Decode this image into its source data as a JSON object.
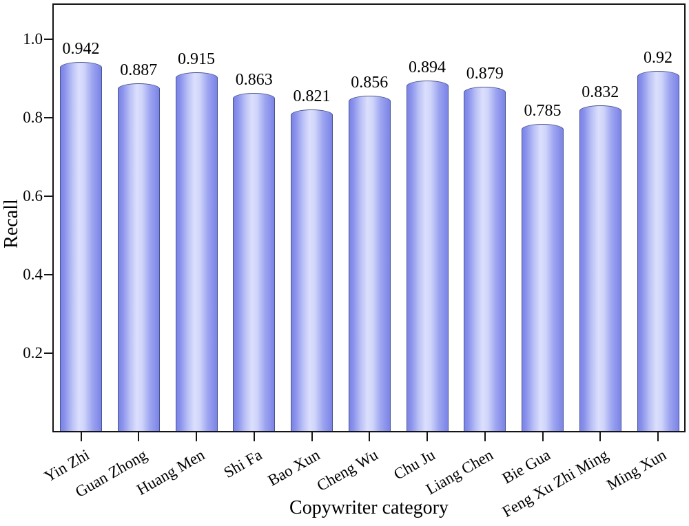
{
  "chart_data": {
    "type": "bar",
    "title": "",
    "xlabel": "Copywriter category",
    "ylabel": "Recall",
    "categories": [
      "Yin Zhi",
      "Guan Zhong",
      "Huang Men",
      "Shi Fa",
      "Bao Xun",
      "Cheng Wu",
      "Chu Ju",
      "Liang Chen",
      "Bie Gua",
      "Feng Xu Zhi Ming",
      "Ming Xun"
    ],
    "values": [
      0.942,
      0.887,
      0.915,
      0.863,
      0.821,
      0.856,
      0.894,
      0.879,
      0.785,
      0.832,
      0.92
    ],
    "bar_labels": [
      "0.942",
      "0.887",
      "0.915",
      "0.863",
      "0.821",
      "0.856",
      "0.894",
      "0.879",
      "0.785",
      "0.832",
      "0.92"
    ],
    "yticks": [
      0.2,
      0.4,
      0.6,
      0.8,
      1.0
    ],
    "ytick_labels": [
      "0.2",
      "0.4",
      "0.6",
      "0.8",
      "1.0"
    ],
    "ylim": [
      0,
      1.09
    ],
    "grid": false,
    "legend": null,
    "colors": {
      "bar_edge": "#7b83e7",
      "bar_highlight": "#dcdffc",
      "bar_outline": "#47538a",
      "axis": "#141414",
      "text": "#000000",
      "background": "#ffffff"
    }
  }
}
